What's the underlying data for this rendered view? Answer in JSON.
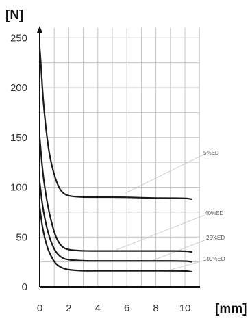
{
  "chart_data": {
    "type": "line",
    "title": "",
    "xlabel": "[mm]",
    "ylabel": "[N]",
    "xlim": [
      0,
      11
    ],
    "ylim": [
      0,
      260
    ],
    "x_ticks": [
      0,
      2,
      4,
      6,
      8,
      10
    ],
    "y_ticks": [
      0,
      50,
      100,
      150,
      200,
      250
    ],
    "grid": true,
    "colors": {
      "curve": "#1a1a1a",
      "grid": "#c4c4c4",
      "axis": "#111111",
      "leader": "#cfcfcf"
    },
    "series": [
      {
        "name": "5%ED",
        "x": [
          0,
          0.1,
          0.2,
          0.35,
          0.5,
          0.7,
          1.0,
          1.3,
          1.6,
          2.0,
          3.0,
          4.0,
          6.0,
          8.0,
          10.0,
          10.5
        ],
        "y": [
          240,
          220,
          195,
          170,
          150,
          130,
          112,
          100,
          94,
          91,
          90,
          90,
          90,
          89,
          89,
          88
        ]
      },
      {
        "name": "40%ED",
        "x": [
          0,
          0.2,
          0.5,
          0.8,
          1.1,
          1.5,
          2.0,
          3.0,
          4.0,
          6.0,
          8.0,
          10.0,
          10.5
        ],
        "y": [
          150,
          115,
          85,
          65,
          50,
          40,
          37,
          36,
          36,
          36,
          36,
          36,
          35
        ]
      },
      {
        "name": "25%ED",
        "x": [
          0,
          0.2,
          0.5,
          0.8,
          1.1,
          1.5,
          2.0,
          3.0,
          4.0,
          6.0,
          8.0,
          10.0,
          10.5
        ],
        "y": [
          105,
          80,
          58,
          44,
          35,
          29,
          27,
          26,
          26,
          26,
          26,
          26,
          25
        ]
      },
      {
        "name": "100%ED",
        "x": [
          0,
          0.2,
          0.5,
          0.8,
          1.1,
          1.5,
          2.0,
          3.0,
          4.0,
          6.0,
          8.0,
          10.0,
          10.5
        ],
        "y": [
          80,
          58,
          40,
          30,
          23,
          19,
          17,
          16,
          16,
          16,
          16,
          16,
          15
        ]
      }
    ]
  }
}
